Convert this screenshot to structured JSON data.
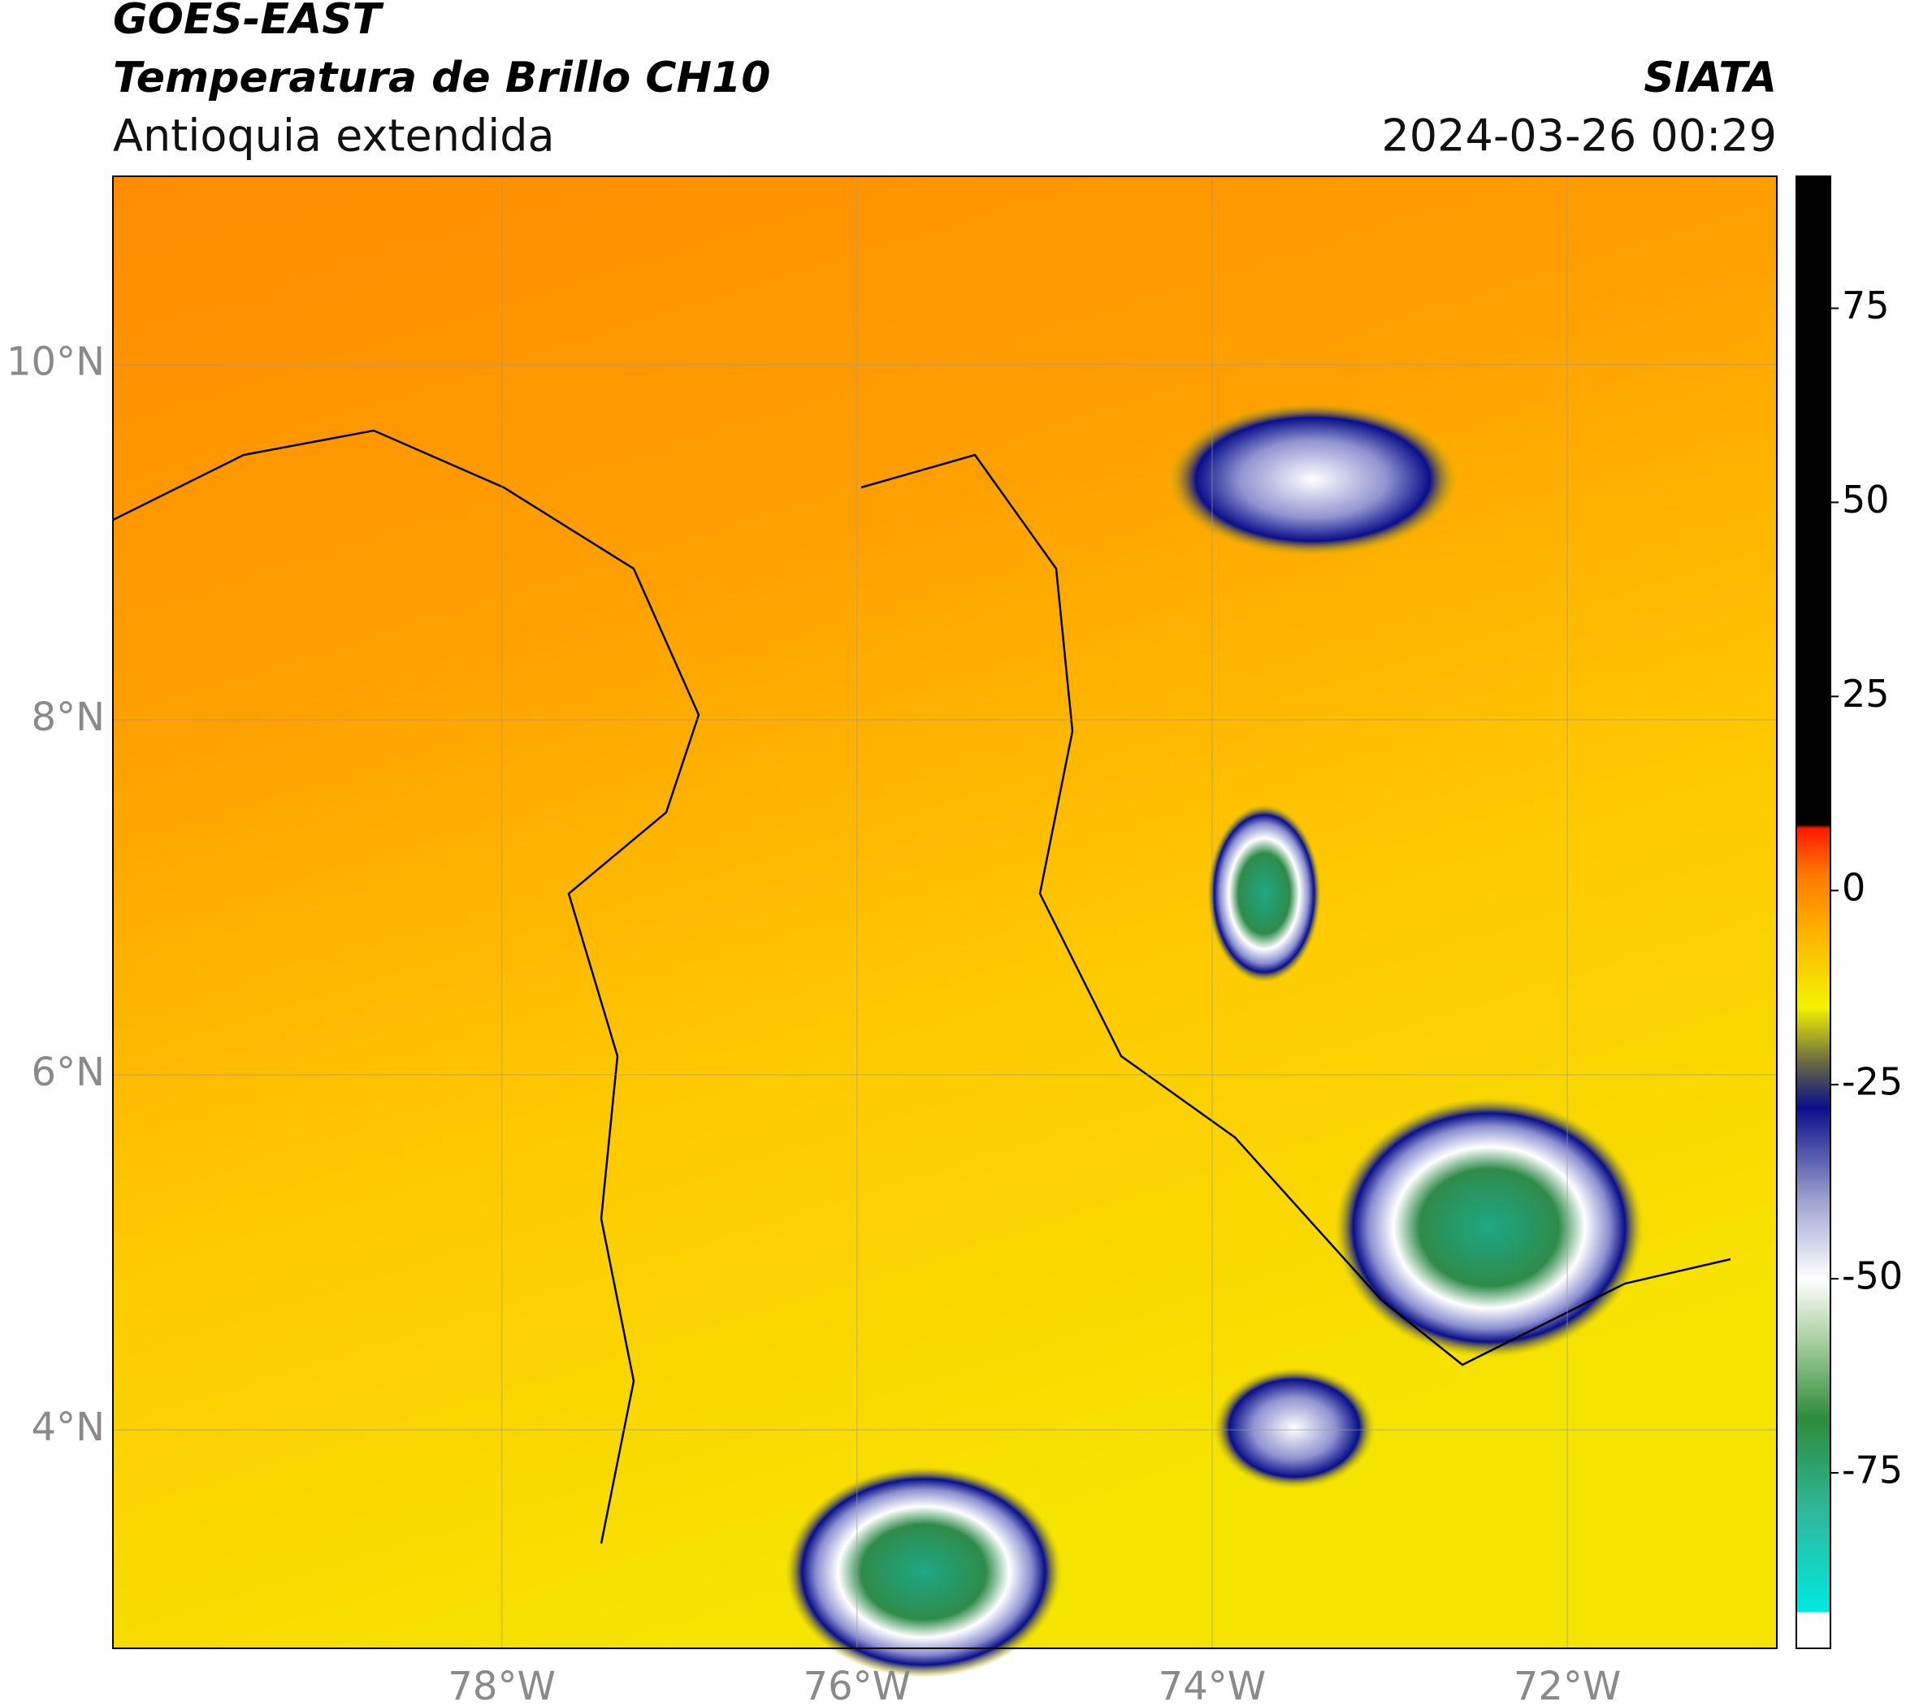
{
  "header": {
    "title": "GOES-EAST",
    "subtitle": "Temperatura de Brillo CH10",
    "region": "Antioquia extendida",
    "source": "SIATA",
    "timestamp": "2024-03-26 00:29"
  },
  "map": {
    "xlim": [
      -80.19,
      -70.82
    ],
    "ylim": [
      2.77,
      11.06
    ],
    "xticks": [
      {
        "value": -78,
        "label": "78°W"
      },
      {
        "value": -76,
        "label": "76°W"
      },
      {
        "value": -74,
        "label": "74°W"
      },
      {
        "value": -72,
        "label": "72°W"
      }
    ],
    "yticks": [
      {
        "value": 4,
        "label": "4°N"
      },
      {
        "value": 6,
        "label": "6°N"
      },
      {
        "value": 8,
        "label": "8°N"
      },
      {
        "value": 10,
        "label": "10°N"
      }
    ],
    "grid": true
  },
  "colorbar": {
    "clim": [
      -97.6,
      92
    ],
    "ticks": [
      -75,
      -50,
      -25,
      0,
      25,
      50,
      75
    ],
    "colorscale": [
      [
        -97.6,
        "#ffffff"
      ],
      [
        -93,
        "#ffffff"
      ],
      [
        -92.9,
        "#00e8e0"
      ],
      [
        -80,
        "#2fb89a"
      ],
      [
        -68,
        "#2e8b3a"
      ],
      [
        -58,
        "#a8cfa0"
      ],
      [
        -50,
        "#ffffff"
      ],
      [
        -40,
        "#9fa3d0"
      ],
      [
        -28,
        "#0a0f8a"
      ],
      [
        -22,
        "#6b6b40"
      ],
      [
        -15,
        "#f2f200"
      ],
      [
        -5,
        "#ffb000"
      ],
      [
        2,
        "#ff7a00"
      ],
      [
        8,
        "#ff1a00"
      ],
      [
        8.5,
        "#000000"
      ],
      [
        92,
        "#000000"
      ]
    ]
  }
}
